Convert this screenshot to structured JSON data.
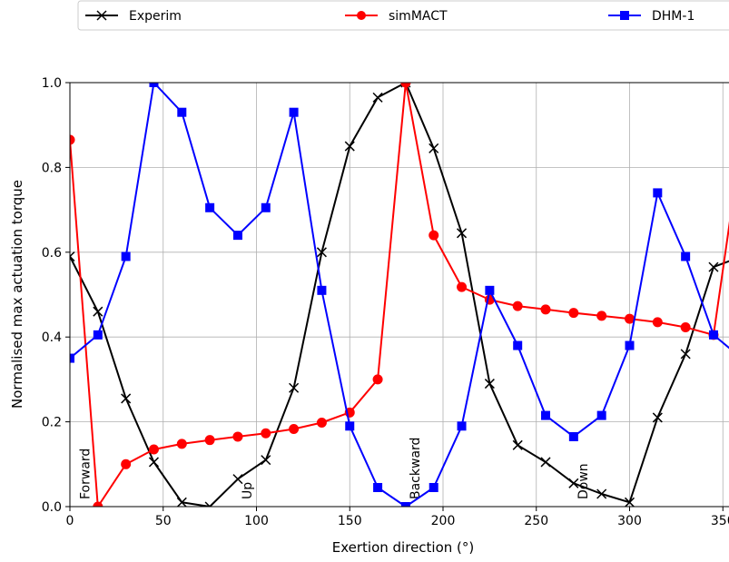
{
  "chart_data": {
    "type": "line",
    "title": "",
    "xlabel": "Exertion direction (°)",
    "ylabel": "Normalised max actuation torque",
    "xlim": [
      0,
      350
    ],
    "ylim": [
      0,
      1.0
    ],
    "x_ticks": [
      "0",
      "50",
      "100",
      "150",
      "200",
      "250",
      "300",
      "350"
    ],
    "y_ticks": [
      "0.0",
      "0.2",
      "0.4",
      "0.6",
      "0.8",
      "1.0"
    ],
    "grid": true,
    "legend_position": "top",
    "annotations": [
      {
        "text": "Forward",
        "x": 8
      },
      {
        "text": "Up",
        "x": 95
      },
      {
        "text": "Backward",
        "x": 185
      },
      {
        "text": "Down",
        "x": 275
      }
    ],
    "series": [
      {
        "name": "Experim",
        "color": "#000000",
        "marker": "x",
        "x": [
          0,
          15,
          30,
          45,
          60,
          75,
          90,
          105,
          120,
          135,
          150,
          165,
          180,
          195,
          210,
          225,
          240,
          255,
          270,
          285,
          300,
          315,
          330,
          345,
          360
        ],
        "values": [
          0.59,
          0.46,
          0.255,
          0.105,
          0.01,
          0.0,
          0.065,
          0.11,
          0.28,
          0.6,
          0.85,
          0.965,
          1.0,
          0.845,
          0.645,
          0.29,
          0.145,
          0.105,
          0.055,
          0.03,
          0.01,
          0.21,
          0.36,
          0.565,
          0.59
        ]
      },
      {
        "name": "simMACT",
        "color": "#ff0000",
        "marker": "o",
        "x": [
          0,
          15,
          30,
          45,
          60,
          75,
          90,
          105,
          120,
          135,
          150,
          165,
          180,
          195,
          210,
          225,
          240,
          255,
          270,
          285,
          300,
          315,
          330,
          345,
          360
        ],
        "values": [
          0.865,
          0.0,
          0.1,
          0.135,
          0.148,
          0.157,
          0.165,
          0.173,
          0.183,
          0.198,
          0.222,
          0.3,
          1.0,
          0.64,
          0.518,
          0.488,
          0.473,
          0.465,
          0.457,
          0.45,
          0.443,
          0.435,
          0.423,
          0.405,
          0.865
        ]
      },
      {
        "name": "DHM-1",
        "color": "#0000ff",
        "marker": "s",
        "x": [
          0,
          15,
          30,
          45,
          60,
          75,
          90,
          105,
          120,
          135,
          150,
          165,
          180,
          195,
          210,
          225,
          240,
          255,
          270,
          285,
          300,
          315,
          330,
          345,
          360
        ],
        "values": [
          0.35,
          0.405,
          0.59,
          1.0,
          0.93,
          0.705,
          0.64,
          0.705,
          0.93,
          0.51,
          0.19,
          0.045,
          0.0,
          0.045,
          0.19,
          0.51,
          0.38,
          0.215,
          0.165,
          0.215,
          0.38,
          0.74,
          0.59,
          0.405,
          0.35
        ]
      }
    ]
  }
}
